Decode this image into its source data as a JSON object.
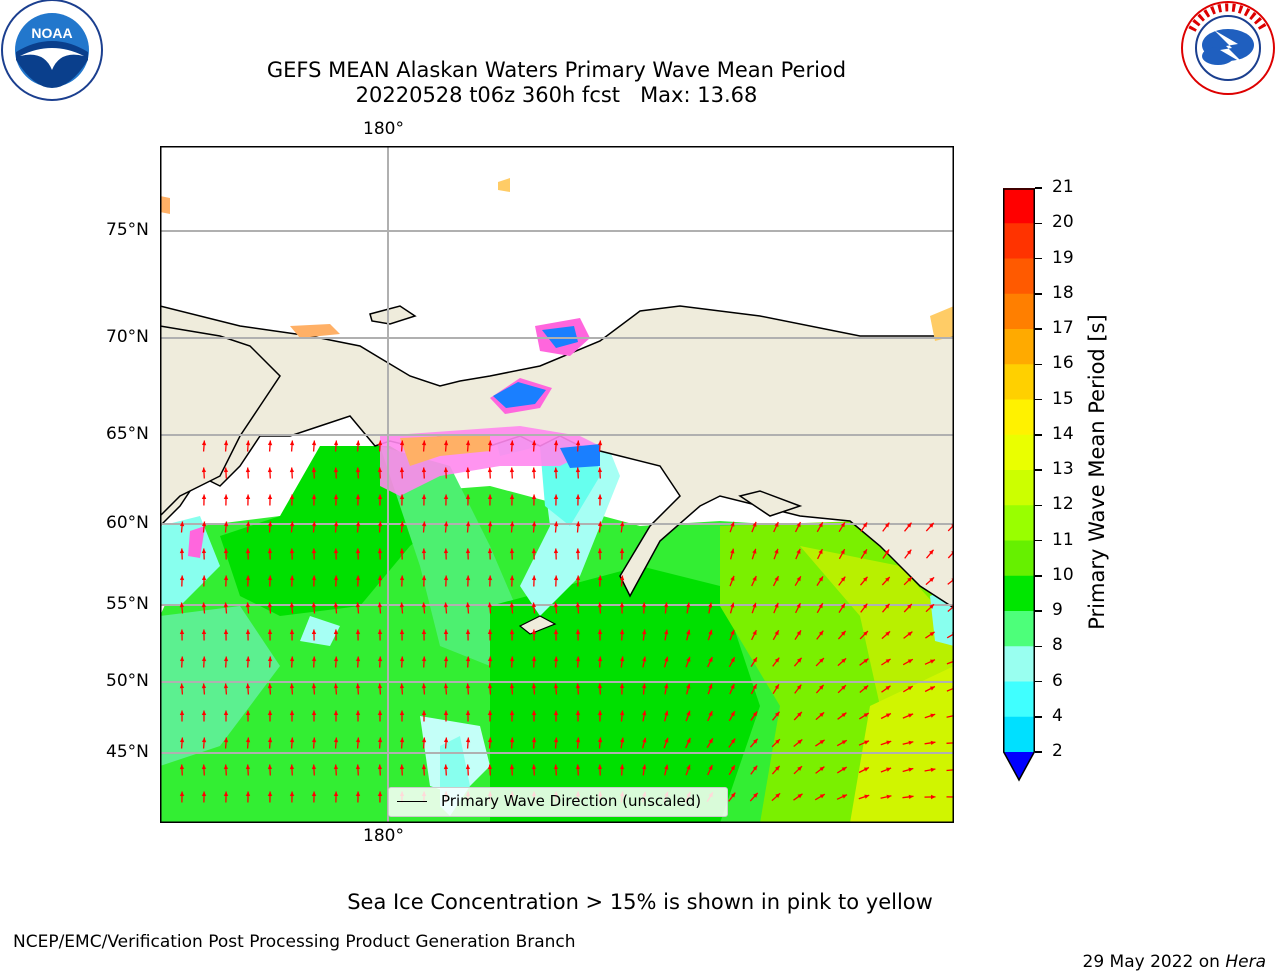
{
  "header": {
    "title_line1": "GEFS MEAN Alaskan Waters Primary Wave Mean Period",
    "title_line2": "20220528 t06z 360h fcst   Max: 13.68"
  },
  "logos": {
    "left": {
      "name": "noaa-logo",
      "text": "NOAA"
    },
    "right": {
      "name": "nws-logo",
      "text": "NATIONAL WEATHER SERVICE"
    }
  },
  "map": {
    "lon_tick_top": "180°",
    "lon_tick_bottom": "180°",
    "lat_ticks": [
      "75°N",
      "70°N",
      "65°N",
      "60°N",
      "55°N",
      "50°N",
      "45°N"
    ],
    "legend_label": "Primary Wave Direction (unscaled)",
    "colors": {
      "land": "#efecdc",
      "green_dark": "#00e600",
      "green_mid": "#66f000",
      "green_light": "#4af07a",
      "yellow_green": "#c8f000",
      "cyan_light": "#a0fff6",
      "blue": "#1a7fff",
      "arrow": "#ff0000",
      "sea_ice_pink": "#ff66dd",
      "sea_ice_orange": "#ffb066"
    }
  },
  "colorbar": {
    "label": "Primary Wave Mean Period [s]",
    "ticks": [
      "21",
      "20",
      "19",
      "18",
      "17",
      "16",
      "15",
      "14",
      "13",
      "12",
      "11",
      "10",
      "9",
      "8",
      "6",
      "4",
      "2"
    ],
    "colors": [
      "#ff0000",
      "#ff3300",
      "#ff5a00",
      "#ff7f00",
      "#ffaa00",
      "#ffd000",
      "#fff200",
      "#eaff00",
      "#ccff00",
      "#99ff00",
      "#66f000",
      "#00e600",
      "#4dff7a",
      "#99fff0",
      "#40ffff",
      "#00e0ff",
      "#0066ff"
    ],
    "extend_color": "#0000ff"
  },
  "footer": {
    "note": "Sea Ice Concentration > 15% is shown in pink to yellow",
    "credit": "NCEP/EMC/Verification Post Processing Product Generation Branch",
    "date": "29 May 2022 on ",
    "machine": "Hera"
  }
}
